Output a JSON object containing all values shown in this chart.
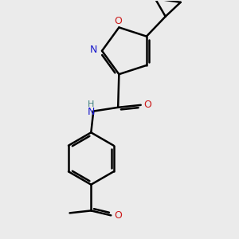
{
  "background_color": "#ebebeb",
  "atom_color_N": "#1919cc",
  "atom_color_O": "#cc1919",
  "bond_color": "#000000",
  "bond_width": 1.8,
  "dbo": 0.05,
  "xlim": [
    -1.8,
    2.2
  ],
  "ylim": [
    -2.6,
    2.4
  ]
}
